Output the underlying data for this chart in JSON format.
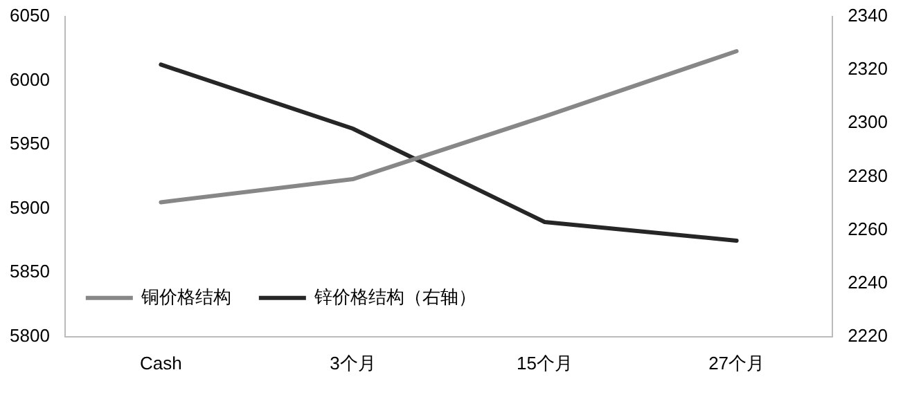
{
  "chart_data": {
    "type": "line",
    "categories": [
      "Cash",
      "3个月",
      "15个月",
      "27个月"
    ],
    "series": [
      {
        "name": "铜价格结构",
        "color": "#878787",
        "values": [
          5905,
          5923,
          5972,
          6023
        ]
      },
      {
        "name": "锌价格结构（右轴）",
        "color": "#262626",
        "values": [
          2322,
          2298,
          2263,
          2256
        ],
        "axis": "y2"
      }
    ],
    "ylim": [
      5800,
      6050
    ],
    "yticks": [
      5800,
      5850,
      5900,
      5950,
      6000,
      6050
    ],
    "y2lim": [
      2220,
      2340
    ],
    "y2ticks": [
      2220,
      2240,
      2260,
      2280,
      2300,
      2320,
      2340
    ],
    "legend": "bottom left",
    "marker": "none",
    "line_style": "solid",
    "grid": false
  }
}
